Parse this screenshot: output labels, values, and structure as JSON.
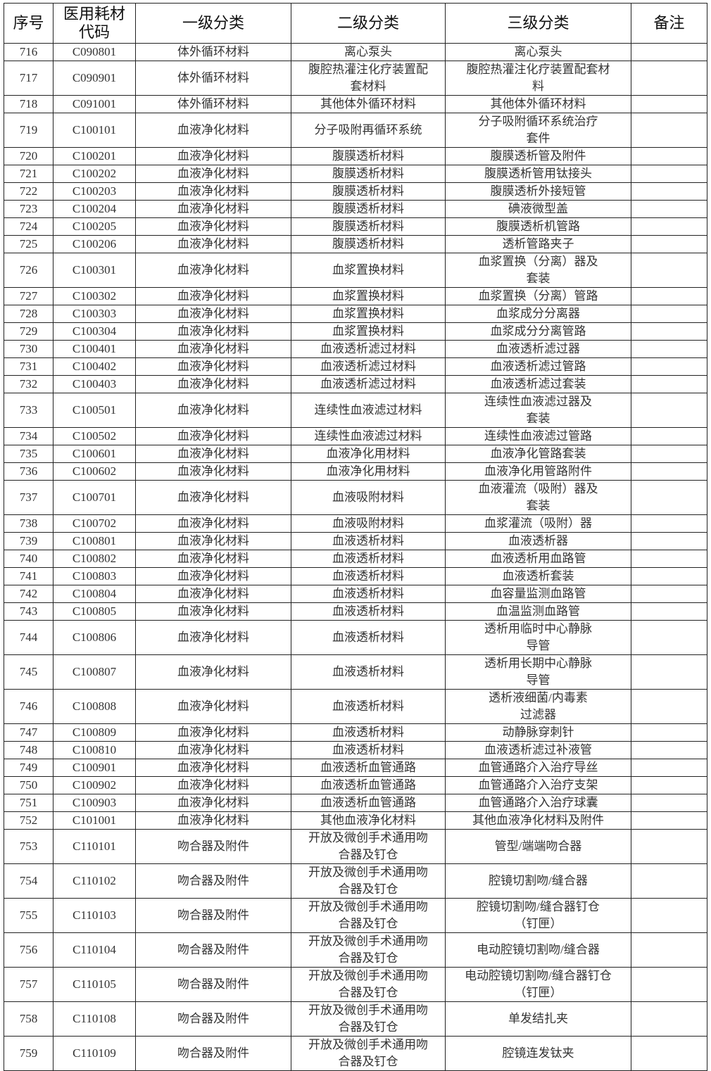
{
  "headers": [
    "序号",
    "医用耗材\n代码",
    "一级分类",
    "二级分类",
    "三级分类",
    "备注"
  ],
  "rows": [
    [
      "716",
      "C090801",
      "体外循环材料",
      "离心泵头",
      "离心泵头",
      ""
    ],
    [
      "717",
      "C090901",
      "体外循环材料",
      "腹腔热灌注化疗装置配\n套材料",
      "腹腔热灌注化疗装置配套材\n料",
      ""
    ],
    [
      "718",
      "C091001",
      "体外循环材料",
      "其他体外循环材料",
      "其他体外循环材料",
      ""
    ],
    [
      "719",
      "C100101",
      "血液净化材料",
      "分子吸附再循环系统",
      "分子吸附循环系统治疗\n套件",
      ""
    ],
    [
      "720",
      "C100201",
      "血液净化材料",
      "腹膜透析材料",
      "腹膜透析管及附件",
      ""
    ],
    [
      "721",
      "C100202",
      "血液净化材料",
      "腹膜透析材料",
      "腹膜透析管用钛接头",
      ""
    ],
    [
      "722",
      "C100203",
      "血液净化材料",
      "腹膜透析材料",
      "腹膜透析外接短管",
      ""
    ],
    [
      "723",
      "C100204",
      "血液净化材料",
      "腹膜透析材料",
      "碘液微型盖",
      ""
    ],
    [
      "724",
      "C100205",
      "血液净化材料",
      "腹膜透析材料",
      "腹膜透析机管路",
      ""
    ],
    [
      "725",
      "C100206",
      "血液净化材料",
      "腹膜透析材料",
      "透析管路夹子",
      ""
    ],
    [
      "726",
      "C100301",
      "血液净化材料",
      "血浆置换材料",
      "血浆置换（分离）器及\n套装",
      ""
    ],
    [
      "727",
      "C100302",
      "血液净化材料",
      "血浆置换材料",
      "血浆置换（分离）管路",
      ""
    ],
    [
      "728",
      "C100303",
      "血液净化材料",
      "血浆置换材料",
      "血浆成分分离器",
      ""
    ],
    [
      "729",
      "C100304",
      "血液净化材料",
      "血浆置换材料",
      "血浆成分分离管路",
      ""
    ],
    [
      "730",
      "C100401",
      "血液净化材料",
      "血液透析滤过材料",
      "血液透析滤过器",
      ""
    ],
    [
      "731",
      "C100402",
      "血液净化材料",
      "血液透析滤过材料",
      "血液透析滤过管路",
      ""
    ],
    [
      "732",
      "C100403",
      "血液净化材料",
      "血液透析滤过材料",
      "血液透析滤过套装",
      ""
    ],
    [
      "733",
      "C100501",
      "血液净化材料",
      "连续性血液滤过材料",
      "连续性血液滤过器及\n套装",
      ""
    ],
    [
      "734",
      "C100502",
      "血液净化材料",
      "连续性血液滤过材料",
      "连续性血液滤过管路",
      ""
    ],
    [
      "735",
      "C100601",
      "血液净化材料",
      "血液净化用材料",
      "血液净化管路套装",
      ""
    ],
    [
      "736",
      "C100602",
      "血液净化材料",
      "血液净化用材料",
      "血液净化用管路附件",
      ""
    ],
    [
      "737",
      "C100701",
      "血液净化材料",
      "血液吸附材料",
      "血液灌流（吸附）器及\n套装",
      ""
    ],
    [
      "738",
      "C100702",
      "血液净化材料",
      "血液吸附材料",
      "血浆灌流（吸附）器",
      ""
    ],
    [
      "739",
      "C100801",
      "血液净化材料",
      "血液透析材料",
      "血液透析器",
      ""
    ],
    [
      "740",
      "C100802",
      "血液净化材料",
      "血液透析材料",
      "血液透析用血路管",
      ""
    ],
    [
      "741",
      "C100803",
      "血液净化材料",
      "血液透析材料",
      "血液透析套装",
      ""
    ],
    [
      "742",
      "C100804",
      "血液净化材料",
      "血液透析材料",
      "血容量监测血路管",
      ""
    ],
    [
      "743",
      "C100805",
      "血液净化材料",
      "血液透析材料",
      "血温监测血路管",
      ""
    ],
    [
      "744",
      "C100806",
      "血液净化材料",
      "血液透析材料",
      "透析用临时中心静脉\n导管",
      ""
    ],
    [
      "745",
      "C100807",
      "血液净化材料",
      "血液透析材料",
      "透析用长期中心静脉\n导管",
      ""
    ],
    [
      "746",
      "C100808",
      "血液净化材料",
      "血液透析材料",
      "透析液细菌/内毒素\n过滤器",
      ""
    ],
    [
      "747",
      "C100809",
      "血液净化材料",
      "血液透析材料",
      "动静脉穿刺针",
      ""
    ],
    [
      "748",
      "C100810",
      "血液净化材料",
      "血液透析材料",
      "血液透析滤过补液管",
      ""
    ],
    [
      "749",
      "C100901",
      "血液净化材料",
      "血液透析血管通路",
      "血管通路介入治疗导丝",
      ""
    ],
    [
      "750",
      "C100902",
      "血液净化材料",
      "血液透析血管通路",
      "血管通路介入治疗支架",
      ""
    ],
    [
      "751",
      "C100903",
      "血液净化材料",
      "血液透析血管通路",
      "血管通路介入治疗球囊",
      ""
    ],
    [
      "752",
      "C101001",
      "血液净化材料",
      "其他血液净化材料",
      "其他血液净化材料及附件",
      ""
    ],
    [
      "753",
      "C110101",
      "吻合器及附件",
      "开放及微创手术通用吻\n合器及钉仓",
      "管型/端端吻合器",
      ""
    ],
    [
      "754",
      "C110102",
      "吻合器及附件",
      "开放及微创手术通用吻\n合器及钉仓",
      "腔镜切割吻/缝合器",
      ""
    ],
    [
      "755",
      "C110103",
      "吻合器及附件",
      "开放及微创手术通用吻\n合器及钉仓",
      "腔镜切割吻/缝合器钉仓\n（钉匣）",
      ""
    ],
    [
      "756",
      "C110104",
      "吻合器及附件",
      "开放及微创手术通用吻\n合器及钉仓",
      "电动腔镜切割吻/缝合器",
      ""
    ],
    [
      "757",
      "C110105",
      "吻合器及附件",
      "开放及微创手术通用吻\n合器及钉仓",
      "电动腔镜切割吻/缝合器钉仓\n（钉匣）",
      ""
    ],
    [
      "758",
      "C110108",
      "吻合器及附件",
      "开放及微创手术通用吻\n合器及钉仓",
      "单发结扎夹",
      ""
    ],
    [
      "759",
      "C110109",
      "吻合器及附件",
      "开放及微创手术通用吻\n合器及钉仓",
      "腔镜连发钛夹",
      ""
    ]
  ]
}
